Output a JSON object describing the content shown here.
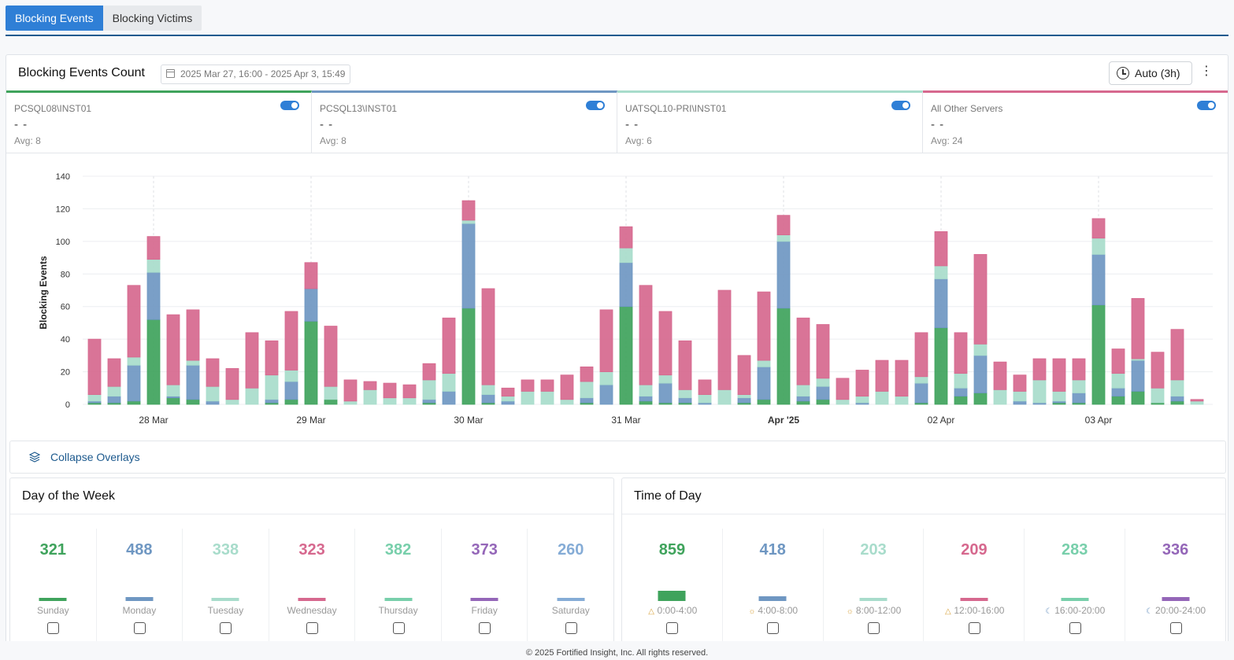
{
  "tabs": [
    {
      "label": "Blocking Events"
    },
    {
      "label": "Blocking Victims"
    }
  ],
  "header": {
    "title": "Blocking Events Count",
    "date_range": "2025 Mar 27, 16:00 - 2025 Apr 3, 15:49",
    "refresh_label": "Auto (3h)",
    "menu_glyph": "⋮"
  },
  "servers": [
    {
      "name": "PCSQL08\\INST01",
      "value": "- -",
      "avg": "Avg: 8",
      "color": "#3fa35c"
    },
    {
      "name": "PCSQL13\\INST01",
      "value": "- -",
      "avg": "Avg: 8",
      "color": "#6f97c2"
    },
    {
      "name": "UATSQL10-PRI\\INST01",
      "value": "- -",
      "avg": "Avg: 6",
      "color": "#a8dccb"
    },
    {
      "name": "All Other Servers",
      "value": "- -",
      "avg": "Avg: 24",
      "color": "#d6688e"
    }
  ],
  "chart_data": {
    "type": "bar",
    "stacked": true,
    "ylabel": "Blocking Events",
    "ylim": [
      0,
      140
    ],
    "yticks": [
      0,
      20,
      40,
      60,
      80,
      100,
      120,
      140
    ],
    "xticks": [
      "28 Mar",
      "29 Mar",
      "30 Mar",
      "31 Mar",
      "Apr '25",
      "02 Apr",
      "03 Apr"
    ],
    "xtick_bar_index": [
      3,
      11,
      19,
      27,
      35,
      43,
      51
    ],
    "series": [
      {
        "name": "PCSQL08\\INST01",
        "color": "#3fa35c",
        "values": [
          1,
          1,
          2,
          52,
          4,
          3,
          0,
          0,
          0,
          1,
          3,
          51,
          3,
          0,
          0,
          0,
          0,
          1,
          0,
          59,
          1,
          0,
          0,
          0,
          0,
          1,
          0,
          60,
          2,
          1,
          1,
          0,
          0,
          1,
          3,
          59,
          2,
          3,
          0,
          0,
          0,
          0,
          1,
          47,
          5,
          7,
          0,
          0,
          0,
          1,
          1,
          61,
          5,
          8,
          1,
          2,
          0
        ]
      },
      {
        "name": "PCSQL13\\INST01",
        "color": "#6f97c2",
        "values": [
          1,
          4,
          22,
          29,
          1,
          21,
          2,
          0,
          0,
          2,
          11,
          20,
          0,
          0,
          0,
          0,
          0,
          2,
          8,
          52,
          5,
          2,
          0,
          0,
          0,
          3,
          12,
          27,
          3,
          12,
          3,
          1,
          0,
          3,
          20,
          41,
          3,
          8,
          0,
          1,
          0,
          0,
          12,
          30,
          5,
          23,
          0,
          2,
          1,
          1,
          6,
          31,
          5,
          19,
          0,
          3,
          0
        ]
      },
      {
        "name": "UATSQL10-PRI\\INST01",
        "color": "#a8dccb",
        "values": [
          4,
          6,
          5,
          8,
          7,
          3,
          9,
          3,
          10,
          15,
          7,
          0,
          8,
          2,
          9,
          4,
          4,
          12,
          11,
          2,
          6,
          3,
          8,
          8,
          3,
          10,
          8,
          9,
          7,
          5,
          5,
          5,
          9,
          2,
          4,
          4,
          7,
          5,
          3,
          4,
          8,
          5,
          4,
          8,
          9,
          7,
          9,
          6,
          14,
          6,
          8,
          10,
          9,
          1,
          9,
          10,
          2
        ]
      },
      {
        "name": "All Other Servers",
        "color": "#d6688e",
        "values": [
          34,
          17,
          44,
          14,
          43,
          31,
          17,
          19,
          34,
          21,
          36,
          16,
          37,
          13,
          5,
          9,
          8,
          10,
          34,
          12,
          59,
          5,
          7,
          7,
          15,
          9,
          38,
          13,
          61,
          39,
          30,
          9,
          61,
          24,
          42,
          12,
          41,
          33,
          13,
          16,
          19,
          22,
          27,
          21,
          25,
          55,
          17,
          10,
          13,
          20,
          13,
          12,
          15,
          37,
          22,
          31,
          1
        ]
      }
    ]
  },
  "collapse": {
    "label": "Collapse Overlays"
  },
  "day_of_week": {
    "title": "Day of the Week",
    "items": [
      {
        "value": "321",
        "label": "Sunday",
        "color": "#3fa35c"
      },
      {
        "value": "488",
        "label": "Monday",
        "color": "#6f97c2"
      },
      {
        "value": "338",
        "label": "Tuesday",
        "color": "#a8dccb"
      },
      {
        "value": "323",
        "label": "Wednesday",
        "color": "#d6688e"
      },
      {
        "value": "382",
        "label": "Thursday",
        "color": "#78cfab"
      },
      {
        "value": "373",
        "label": "Friday",
        "color": "#9466b8"
      },
      {
        "value": "260",
        "label": "Saturday",
        "color": "#85acd6"
      }
    ]
  },
  "time_of_day": {
    "title": "Time of Day",
    "items": [
      {
        "value": "859",
        "label": "0:00-4:00",
        "icon": "△",
        "color": "#3fa35c"
      },
      {
        "value": "418",
        "label": "4:00-8:00",
        "icon": "☼",
        "color": "#6f97c2"
      },
      {
        "value": "203",
        "label": "8:00-12:00",
        "icon": "☼",
        "color": "#a8dccb"
      },
      {
        "value": "209",
        "label": "12:00-16:00",
        "icon": "△",
        "color": "#d6688e"
      },
      {
        "value": "283",
        "label": "16:00-20:00",
        "icon": "☾",
        "color": "#78cfab"
      },
      {
        "value": "336",
        "label": "20:00-24:00",
        "icon": "☾",
        "color": "#9466b8"
      }
    ]
  },
  "footer": {
    "text": "© 2025 Fortified Insight, Inc. All rights reserved."
  }
}
